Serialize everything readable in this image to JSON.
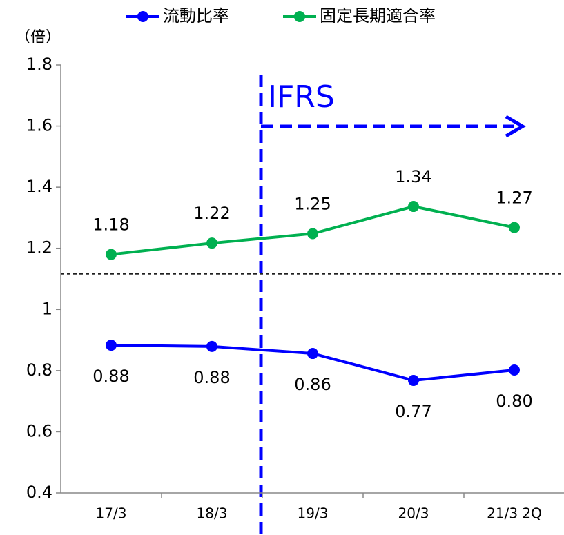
{
  "chart_data": {
    "type": "line",
    "y_unit_label": "（倍）",
    "categories": [
      "17/3",
      "18/3",
      "19/3",
      "20/3",
      "21/3 2Q"
    ],
    "series": [
      {
        "name": "流動比率",
        "color": "#0000ff",
        "values": [
          0.883,
          0.879,
          0.856,
          0.768,
          0.802
        ],
        "value_labels": [
          "0.88",
          "0.88",
          "0.86",
          "0.77",
          "0.80"
        ],
        "label_position": "below"
      },
      {
        "name": "固定長期適合率",
        "color": "#00b050",
        "values": [
          1.18,
          1.217,
          1.248,
          1.337,
          1.268
        ],
        "value_labels": [
          "1.18",
          "1.22",
          "1.25",
          "1.34",
          "1.27"
        ],
        "label_position": "above"
      }
    ],
    "ylim": [
      0.4,
      1.8
    ],
    "yticks": [
      0.4,
      0.6,
      0.8,
      1,
      1.2,
      1.4,
      1.6,
      1.8
    ],
    "reference_line": 1.116,
    "annotation": "IFRS",
    "legend": "top"
  }
}
